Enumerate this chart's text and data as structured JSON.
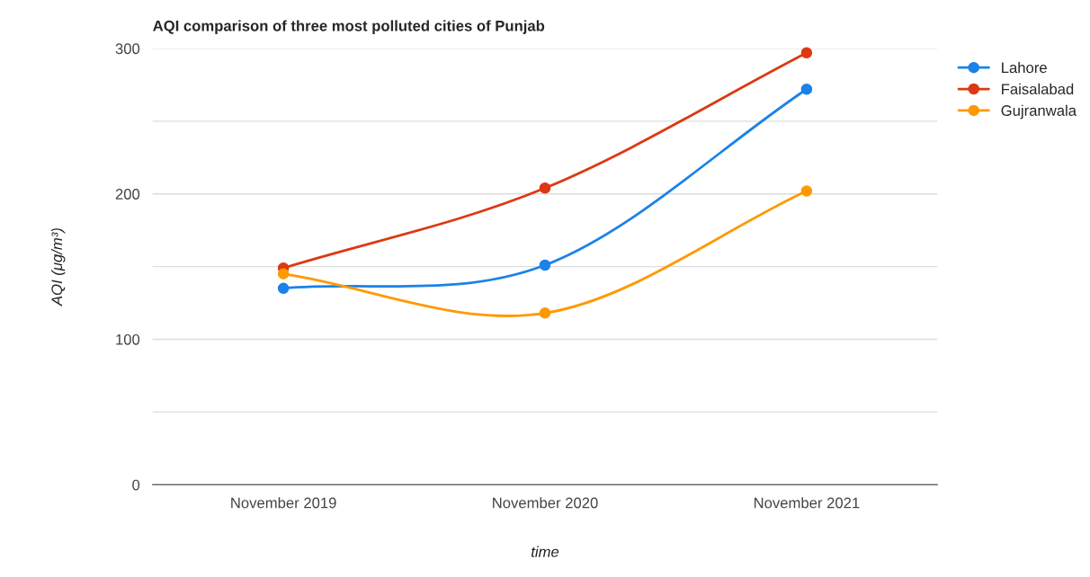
{
  "chart_data": {
    "type": "line",
    "title": "AQI comparison of three most polluted cities of Punjab",
    "xlabel": "time",
    "ylabel": "AQI (μg/m³)",
    "categories": [
      "November 2019",
      "November 2020",
      "November 2021"
    ],
    "series": [
      {
        "name": "Lahore",
        "color": "#1a82e8",
        "values": [
          135,
          151,
          272
        ]
      },
      {
        "name": "Faisalabad",
        "color": "#dc3912",
        "values": [
          149,
          204,
          297
        ]
      },
      {
        "name": "Gujranwala",
        "color": "#ff9900",
        "values": [
          145,
          118,
          202
        ]
      }
    ],
    "ylim": [
      0,
      300
    ],
    "yticks": [
      0,
      {
        "value": 50,
        "label": null
      },
      100,
      {
        "value": 150,
        "label": null
      },
      200,
      {
        "value": 250,
        "label": null
      },
      300
    ],
    "grid": "y",
    "legend": "top right",
    "marker": "circle",
    "line_style": "solid"
  }
}
